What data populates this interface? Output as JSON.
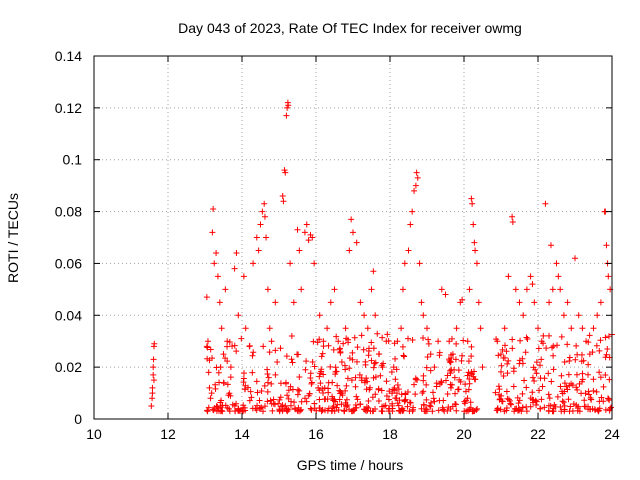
{
  "chart_data": {
    "type": "scatter",
    "title": "Day 043 of 2023, Rate Of TEC Index for receiver owmg",
    "xlabel": "GPS time / hours",
    "ylabel": "ROTI / TECUs",
    "xlim": [
      10,
      24
    ],
    "ylim": [
      0,
      0.14
    ],
    "xticks": [
      10,
      12,
      14,
      16,
      18,
      20,
      22,
      24
    ],
    "yticks": [
      0,
      0.02,
      0.04,
      0.06,
      0.08,
      0.1,
      0.12,
      0.14
    ],
    "xtick_labels": [
      "10",
      "12",
      "14",
      "16",
      "18",
      "20",
      "22",
      "24"
    ],
    "ytick_labels": [
      "0",
      "0.02",
      "0.04",
      "0.06",
      "0.08",
      "0.1",
      "0.12",
      "0.14"
    ],
    "grid": true,
    "marker": "+",
    "color": "#ff0000",
    "series": [
      {
        "points": [
          [
            11.55,
            0.005
          ],
          [
            11.57,
            0.008
          ],
          [
            11.58,
            0.012
          ],
          [
            11.6,
            0.017
          ],
          [
            11.6,
            0.02
          ],
          [
            11.61,
            0.023
          ],
          [
            11.62,
            0.028
          ],
          [
            11.63,
            0.029
          ],
          [
            11.58,
            0.01
          ],
          [
            11.62,
            0.015
          ],
          [
            13.05,
            0.047
          ],
          [
            13.08,
            0.03
          ],
          [
            13.1,
            0.018
          ],
          [
            13.12,
            0.012
          ],
          [
            13.15,
            0.008
          ],
          [
            13.18,
            0.01
          ],
          [
            13.2,
            0.072
          ],
          [
            13.22,
            0.081
          ],
          [
            13.25,
            0.06
          ],
          [
            13.3,
            0.064
          ],
          [
            13.35,
            0.055
          ],
          [
            13.4,
            0.045
          ],
          [
            13.45,
            0.035
          ],
          [
            13.5,
            0.025
          ],
          [
            13.55,
            0.05
          ],
          [
            13.6,
            0.03
          ],
          [
            13.7,
            0.02
          ],
          [
            13.8,
            0.058
          ],
          [
            13.85,
            0.064
          ],
          [
            13.9,
            0.04
          ],
          [
            14.05,
            0.055
          ],
          [
            14.1,
            0.035
          ],
          [
            14.2,
            0.028
          ],
          [
            14.3,
            0.06
          ],
          [
            14.4,
            0.07
          ],
          [
            14.45,
            0.065
          ],
          [
            14.5,
            0.075
          ],
          [
            14.55,
            0.08
          ],
          [
            14.6,
            0.083
          ],
          [
            14.62,
            0.078
          ],
          [
            14.65,
            0.07
          ],
          [
            14.7,
            0.05
          ],
          [
            14.75,
            0.035
          ],
          [
            14.8,
            0.03
          ],
          [
            14.9,
            0.045
          ],
          [
            14.95,
            0.022
          ],
          [
            15.1,
            0.086
          ],
          [
            15.12,
            0.084
          ],
          [
            15.15,
            0.096
          ],
          [
            15.17,
            0.095
          ],
          [
            15.2,
            0.117
          ],
          [
            15.22,
            0.12
          ],
          [
            15.24,
            0.122
          ],
          [
            15.25,
            0.121
          ],
          [
            15.3,
            0.06
          ],
          [
            15.4,
            0.045
          ],
          [
            15.5,
            0.073
          ],
          [
            15.55,
            0.065
          ],
          [
            15.6,
            0.05
          ],
          [
            15.7,
            0.072
          ],
          [
            15.75,
            0.075
          ],
          [
            15.8,
            0.069
          ],
          [
            15.85,
            0.071
          ],
          [
            15.9,
            0.07
          ],
          [
            15.95,
            0.06
          ],
          [
            16.1,
            0.04
          ],
          [
            16.2,
            0.03
          ],
          [
            16.3,
            0.035
          ],
          [
            16.4,
            0.045
          ],
          [
            16.5,
            0.05
          ],
          [
            16.6,
            0.03
          ],
          [
            16.7,
            0.022
          ],
          [
            16.8,
            0.035
          ],
          [
            16.9,
            0.065
          ],
          [
            16.95,
            0.077
          ],
          [
            17.0,
            0.072
          ],
          [
            17.1,
            0.068
          ],
          [
            17.2,
            0.045
          ],
          [
            17.3,
            0.04
          ],
          [
            17.4,
            0.035
          ],
          [
            17.5,
            0.05
          ],
          [
            17.55,
            0.057
          ],
          [
            17.6,
            0.04
          ],
          [
            17.7,
            0.025
          ],
          [
            17.8,
            0.02
          ],
          [
            17.9,
            0.03
          ],
          [
            18.1,
            0.02
          ],
          [
            18.2,
            0.03
          ],
          [
            18.3,
            0.035
          ],
          [
            18.35,
            0.05
          ],
          [
            18.4,
            0.06
          ],
          [
            18.5,
            0.065
          ],
          [
            18.55,
            0.075
          ],
          [
            18.6,
            0.08
          ],
          [
            18.65,
            0.088
          ],
          [
            18.7,
            0.09
          ],
          [
            18.72,
            0.095
          ],
          [
            18.75,
            0.093
          ],
          [
            18.8,
            0.06
          ],
          [
            18.85,
            0.045
          ],
          [
            18.9,
            0.04
          ],
          [
            19.0,
            0.035
          ],
          [
            19.1,
            0.025
          ],
          [
            19.2,
            0.02
          ],
          [
            19.3,
            0.03
          ],
          [
            19.4,
            0.05
          ],
          [
            19.5,
            0.048
          ],
          [
            19.6,
            0.03
          ],
          [
            19.7,
            0.025
          ],
          [
            19.8,
            0.035
          ],
          [
            19.9,
            0.045
          ],
          [
            19.95,
            0.046
          ],
          [
            20.1,
            0.03
          ],
          [
            20.15,
            0.05
          ],
          [
            20.2,
            0.085
          ],
          [
            20.22,
            0.083
          ],
          [
            20.25,
            0.075
          ],
          [
            20.28,
            0.068
          ],
          [
            20.3,
            0.065
          ],
          [
            20.35,
            0.06
          ],
          [
            20.4,
            0.045
          ],
          [
            20.45,
            0.035
          ],
          [
            20.5,
            0.02
          ],
          [
            20.9,
            0.03
          ],
          [
            21.0,
            0.025
          ],
          [
            21.1,
            0.035
          ],
          [
            21.2,
            0.055
          ],
          [
            21.3,
            0.078
          ],
          [
            21.32,
            0.076
          ],
          [
            21.4,
            0.05
          ],
          [
            21.5,
            0.045
          ],
          [
            21.6,
            0.04
          ],
          [
            21.7,
            0.05
          ],
          [
            21.8,
            0.055
          ],
          [
            21.85,
            0.052
          ],
          [
            21.9,
            0.045
          ],
          [
            22.0,
            0.035
          ],
          [
            22.1,
            0.03
          ],
          [
            22.2,
            0.083
          ],
          [
            22.3,
            0.045
          ],
          [
            22.35,
            0.067
          ],
          [
            22.4,
            0.05
          ],
          [
            22.5,
            0.06
          ],
          [
            22.55,
            0.055
          ],
          [
            22.6,
            0.05
          ],
          [
            22.7,
            0.04
          ],
          [
            22.8,
            0.045
          ],
          [
            22.9,
            0.035
          ],
          [
            23.0,
            0.062
          ],
          [
            23.1,
            0.04
          ],
          [
            23.2,
            0.035
          ],
          [
            23.3,
            0.03
          ],
          [
            23.4,
            0.025
          ],
          [
            23.5,
            0.035
          ],
          [
            23.6,
            0.04
          ],
          [
            23.7,
            0.045
          ],
          [
            23.8,
            0.08
          ],
          [
            23.82,
            0.08
          ],
          [
            23.85,
            0.067
          ],
          [
            23.88,
            0.06
          ],
          [
            23.9,
            0.055
          ],
          [
            23.95,
            0.05
          ]
        ]
      }
    ]
  }
}
